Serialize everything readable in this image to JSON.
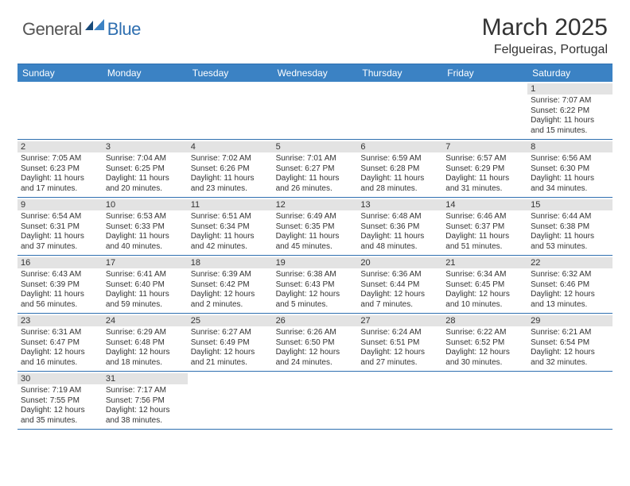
{
  "brand": {
    "part1": "General",
    "part2": "Blue"
  },
  "title": "March 2025",
  "location": "Felgueiras, Portugal",
  "day_names": [
    "Sunday",
    "Monday",
    "Tuesday",
    "Wednesday",
    "Thursday",
    "Friday",
    "Saturday"
  ],
  "colors": {
    "header_bg": "#3b82c4",
    "header_border": "#2f6fb0",
    "daynum_bg": "#e3e3e3",
    "brand_blue": "#2f6fb0",
    "text": "#333333"
  },
  "weeks": [
    [
      null,
      null,
      null,
      null,
      null,
      null,
      {
        "n": "1",
        "sunrise": "7:07 AM",
        "sunset": "6:22 PM",
        "day_h": "11",
        "day_m": "15"
      }
    ],
    [
      {
        "n": "2",
        "sunrise": "7:05 AM",
        "sunset": "6:23 PM",
        "day_h": "11",
        "day_m": "17"
      },
      {
        "n": "3",
        "sunrise": "7:04 AM",
        "sunset": "6:25 PM",
        "day_h": "11",
        "day_m": "20"
      },
      {
        "n": "4",
        "sunrise": "7:02 AM",
        "sunset": "6:26 PM",
        "day_h": "11",
        "day_m": "23"
      },
      {
        "n": "5",
        "sunrise": "7:01 AM",
        "sunset": "6:27 PM",
        "day_h": "11",
        "day_m": "26"
      },
      {
        "n": "6",
        "sunrise": "6:59 AM",
        "sunset": "6:28 PM",
        "day_h": "11",
        "day_m": "28"
      },
      {
        "n": "7",
        "sunrise": "6:57 AM",
        "sunset": "6:29 PM",
        "day_h": "11",
        "day_m": "31"
      },
      {
        "n": "8",
        "sunrise": "6:56 AM",
        "sunset": "6:30 PM",
        "day_h": "11",
        "day_m": "34"
      }
    ],
    [
      {
        "n": "9",
        "sunrise": "6:54 AM",
        "sunset": "6:31 PM",
        "day_h": "11",
        "day_m": "37"
      },
      {
        "n": "10",
        "sunrise": "6:53 AM",
        "sunset": "6:33 PM",
        "day_h": "11",
        "day_m": "40"
      },
      {
        "n": "11",
        "sunrise": "6:51 AM",
        "sunset": "6:34 PM",
        "day_h": "11",
        "day_m": "42"
      },
      {
        "n": "12",
        "sunrise": "6:49 AM",
        "sunset": "6:35 PM",
        "day_h": "11",
        "day_m": "45"
      },
      {
        "n": "13",
        "sunrise": "6:48 AM",
        "sunset": "6:36 PM",
        "day_h": "11",
        "day_m": "48"
      },
      {
        "n": "14",
        "sunrise": "6:46 AM",
        "sunset": "6:37 PM",
        "day_h": "11",
        "day_m": "51"
      },
      {
        "n": "15",
        "sunrise": "6:44 AM",
        "sunset": "6:38 PM",
        "day_h": "11",
        "day_m": "53"
      }
    ],
    [
      {
        "n": "16",
        "sunrise": "6:43 AM",
        "sunset": "6:39 PM",
        "day_h": "11",
        "day_m": "56"
      },
      {
        "n": "17",
        "sunrise": "6:41 AM",
        "sunset": "6:40 PM",
        "day_h": "11",
        "day_m": "59"
      },
      {
        "n": "18",
        "sunrise": "6:39 AM",
        "sunset": "6:42 PM",
        "day_h": "12",
        "day_m": "2"
      },
      {
        "n": "19",
        "sunrise": "6:38 AM",
        "sunset": "6:43 PM",
        "day_h": "12",
        "day_m": "5"
      },
      {
        "n": "20",
        "sunrise": "6:36 AM",
        "sunset": "6:44 PM",
        "day_h": "12",
        "day_m": "7"
      },
      {
        "n": "21",
        "sunrise": "6:34 AM",
        "sunset": "6:45 PM",
        "day_h": "12",
        "day_m": "10"
      },
      {
        "n": "22",
        "sunrise": "6:32 AM",
        "sunset": "6:46 PM",
        "day_h": "12",
        "day_m": "13"
      }
    ],
    [
      {
        "n": "23",
        "sunrise": "6:31 AM",
        "sunset": "6:47 PM",
        "day_h": "12",
        "day_m": "16"
      },
      {
        "n": "24",
        "sunrise": "6:29 AM",
        "sunset": "6:48 PM",
        "day_h": "12",
        "day_m": "18"
      },
      {
        "n": "25",
        "sunrise": "6:27 AM",
        "sunset": "6:49 PM",
        "day_h": "12",
        "day_m": "21"
      },
      {
        "n": "26",
        "sunrise": "6:26 AM",
        "sunset": "6:50 PM",
        "day_h": "12",
        "day_m": "24"
      },
      {
        "n": "27",
        "sunrise": "6:24 AM",
        "sunset": "6:51 PM",
        "day_h": "12",
        "day_m": "27"
      },
      {
        "n": "28",
        "sunrise": "6:22 AM",
        "sunset": "6:52 PM",
        "day_h": "12",
        "day_m": "30"
      },
      {
        "n": "29",
        "sunrise": "6:21 AM",
        "sunset": "6:54 PM",
        "day_h": "12",
        "day_m": "32"
      }
    ],
    [
      {
        "n": "30",
        "sunrise": "7:19 AM",
        "sunset": "7:55 PM",
        "day_h": "12",
        "day_m": "35"
      },
      {
        "n": "31",
        "sunrise": "7:17 AM",
        "sunset": "7:56 PM",
        "day_h": "12",
        "day_m": "38"
      },
      null,
      null,
      null,
      null,
      null
    ]
  ],
  "labels": {
    "sunrise": "Sunrise:",
    "sunset": "Sunset:",
    "daylight_prefix": "Daylight:",
    "hours_word": "hours",
    "and_word": "and",
    "minutes_word": "minutes."
  }
}
